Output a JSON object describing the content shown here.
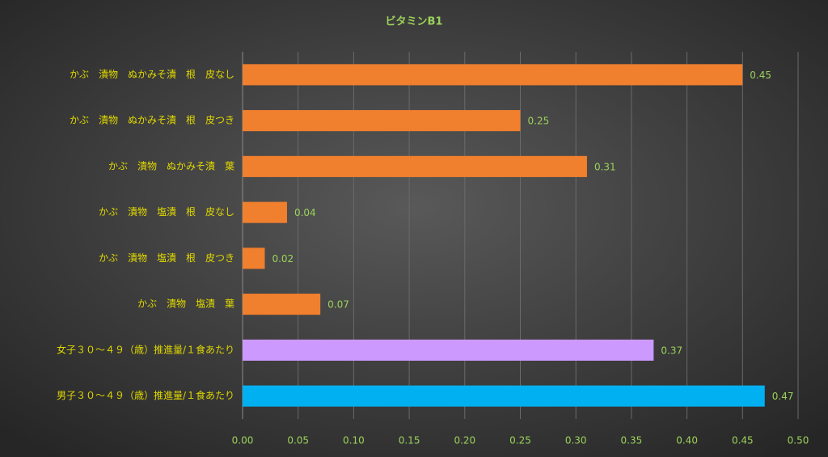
{
  "chart_data": {
    "type": "bar",
    "orientation": "horizontal",
    "title": "ビタミンB1",
    "categories": [
      "かぶ　漬物　ぬかみそ漬　根　皮なし",
      "かぶ　漬物　ぬかみそ漬　根　皮つき",
      "かぶ　漬物　ぬかみそ漬　葉",
      "かぶ　漬物　塩漬　根　皮なし",
      "かぶ　漬物　塩漬　根　皮つき",
      "かぶ　漬物　塩漬　葉",
      "女子３０～４９（歳）推進量/１食あたり",
      "男子３０～４９（歳）推進量/１食あたり"
    ],
    "values": [
      0.45,
      0.25,
      0.31,
      0.04,
      0.02,
      0.07,
      0.37,
      0.47
    ],
    "colors": [
      "#f07f2e",
      "#f07f2e",
      "#f07f2e",
      "#f07f2e",
      "#f07f2e",
      "#f07f2e",
      "#cc99ff",
      "#00b0f0"
    ],
    "xlim": [
      0,
      0.5
    ],
    "xticks": [
      {
        "value": 0,
        "label": "0.00"
      },
      0.05,
      {
        "value": 0.1,
        "label": "0.10"
      },
      0.15,
      {
        "value": 0.2,
        "label": "0.20"
      },
      0.25,
      {
        "value": 0.3,
        "label": "0.30"
      },
      0.35,
      {
        "value": 0.4,
        "label": "0.40"
      },
      0.45,
      {
        "value": 0.5,
        "label": "0.50"
      }
    ],
    "grid": true
  }
}
